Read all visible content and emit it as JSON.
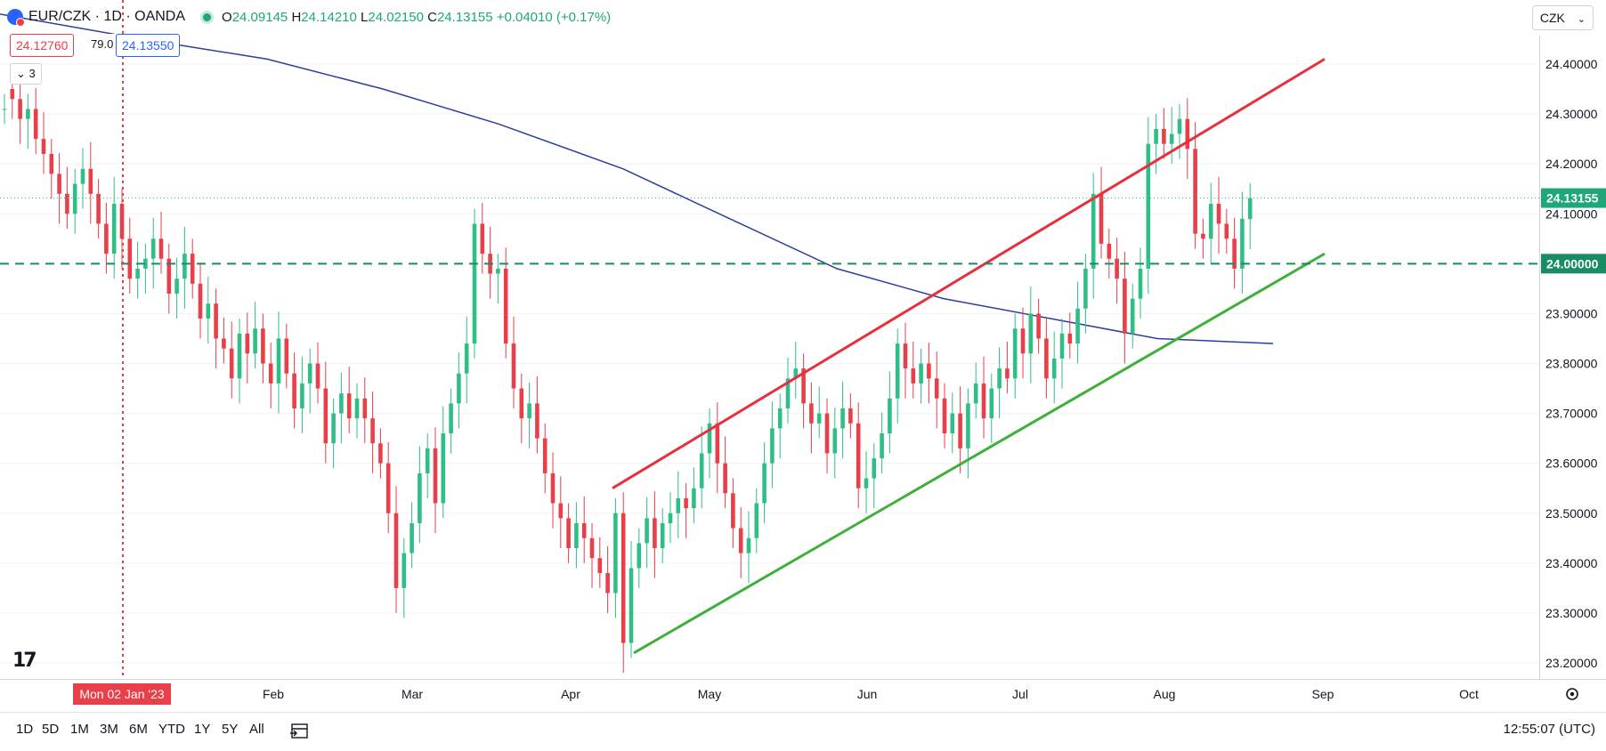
{
  "header": {
    "symbol": "EUR/CZK · 1D · OANDA",
    "o_label": "O",
    "o": "24.09145",
    "h_label": "H",
    "h": "24.14210",
    "l_label": "L",
    "l": "24.02150",
    "c_label": "C",
    "c": "24.13155",
    "change": "+0.04010 (+0.17%)"
  },
  "trade": {
    "sell": "24.12760",
    "spread": "79.0",
    "buy": "24.13550"
  },
  "indicator_count": "3",
  "currency_button": "CZK",
  "time_ranges": [
    "1D",
    "5D",
    "1M",
    "3M",
    "6M",
    "YTD",
    "1Y",
    "5Y",
    "All"
  ],
  "clock": "12:55:07 (UTC)",
  "colors": {
    "up": "#2fbf86",
    "down": "#e83f48",
    "ma": "#2a3f9e",
    "support": "#3fb03a",
    "resistance": "#e8303c",
    "level": "#1a8c64"
  },
  "chart_data": {
    "type": "candlestick",
    "ylim": [
      23.17,
      24.5
    ],
    "yticks": [
      "24.40000",
      "24.30000",
      "24.20000",
      "24.10000",
      "23.90000",
      "23.80000",
      "23.70000",
      "23.60000",
      "23.50000",
      "23.40000",
      "23.30000",
      "23.20000"
    ],
    "xticks": [
      "Feb",
      "Mar",
      "Apr",
      "May",
      "Jun",
      "Jul",
      "Aug",
      "Sep",
      "Oct"
    ],
    "crosshair_label": "Mon 02 Jan '23",
    "last_price_label": "24.13155",
    "level_label": "24.00000",
    "level_value": 24.0,
    "last_price": 24.13155,
    "close": [
      24.31,
      24.33,
      24.29,
      24.31,
      24.25,
      24.22,
      24.18,
      24.14,
      24.1,
      24.16,
      24.19,
      24.14,
      24.08,
      24.02,
      24.12,
      24.05,
      23.97,
      23.99,
      24.01,
      24.05,
      24.01,
      23.94,
      23.97,
      24.02,
      23.96,
      23.89,
      23.92,
      23.85,
      23.83,
      23.77,
      23.86,
      23.82,
      23.87,
      23.8,
      23.76,
      23.85,
      23.78,
      23.71,
      23.76,
      23.8,
      23.75,
      23.64,
      23.7,
      23.74,
      23.69,
      23.73,
      23.69,
      23.64,
      23.6,
      23.5,
      23.35,
      23.42,
      23.48,
      23.58,
      23.63,
      23.52,
      23.66,
      23.72,
      23.78,
      23.84,
      24.08,
      24.02,
      23.98,
      23.99,
      23.84,
      23.75,
      23.69,
      23.72,
      23.65,
      23.58,
      23.52,
      23.49,
      23.43,
      23.48,
      23.45,
      23.41,
      23.38,
      23.34,
      23.5,
      23.24,
      23.39,
      23.44,
      23.49,
      23.43,
      23.48,
      23.5,
      23.53,
      23.51,
      23.55,
      23.62,
      23.68,
      23.6,
      23.54,
      23.47,
      23.42,
      23.45,
      23.52,
      23.6,
      23.67,
      23.71,
      23.77,
      23.79,
      23.72,
      23.68,
      23.7,
      23.62,
      23.67,
      23.71,
      23.68,
      23.55,
      23.57,
      23.61,
      23.66,
      23.73,
      23.84,
      23.79,
      23.76,
      23.8,
      23.77,
      23.73,
      23.66,
      23.7,
      23.63,
      23.72,
      23.76,
      23.69,
      23.75,
      23.79,
      23.77,
      23.87,
      23.82,
      23.9,
      23.85,
      23.77,
      23.81,
      23.86,
      23.84,
      23.91,
      23.99,
      24.14,
      24.04,
      24.01,
      23.97,
      23.86,
      23.93,
      23.99,
      24.24,
      24.27,
      24.24,
      24.26,
      24.29,
      24.23,
      24.06,
      24.05,
      24.12,
      24.08,
      24.05,
      23.99,
      24.09,
      24.13155
    ],
    "open_delta": [
      0.0,
      0.02,
      0.04,
      -0.02,
      0.06,
      0.03,
      0.04,
      0.04,
      0.04,
      -0.06,
      -0.03,
      0.05,
      0.06,
      0.06,
      -0.1,
      0.07,
      0.08,
      -0.02,
      -0.02,
      -0.04,
      0.04,
      0.07,
      -0.03,
      -0.05,
      0.06,
      0.07,
      -0.03,
      0.07,
      0.02,
      0.06,
      -0.09,
      0.04,
      -0.05,
      0.07,
      0.04,
      -0.09,
      0.07,
      0.07,
      -0.05,
      -0.04,
      0.05,
      0.11,
      -0.06,
      -0.04,
      0.05,
      -0.04,
      0.04,
      0.05,
      0.04,
      0.1,
      0.15,
      -0.07,
      -0.06,
      -0.1,
      -0.05,
      0.11,
      -0.14,
      -0.06,
      -0.06,
      -0.06,
      -0.24,
      0.06,
      0.04,
      -0.01,
      0.15,
      0.09,
      0.06,
      -0.03,
      0.07,
      0.07,
      0.06,
      0.03,
      0.06,
      -0.05,
      0.03,
      0.04,
      0.03,
      0.04,
      -0.16,
      0.26,
      -0.15,
      -0.05,
      -0.05,
      0.06,
      -0.05,
      -0.02,
      -0.03,
      0.02,
      -0.04,
      -0.07,
      -0.06,
      0.08,
      0.06,
      0.07,
      0.05,
      -0.03,
      -0.07,
      -0.08,
      -0.07,
      -0.04,
      -0.06,
      -0.02,
      0.07,
      0.04,
      -0.02,
      0.08,
      -0.05,
      -0.04,
      0.03,
      0.13,
      -0.02,
      -0.04,
      -0.05,
      -0.07,
      -0.11,
      0.05,
      0.03,
      -0.04,
      0.03,
      0.04,
      0.07,
      -0.04,
      0.07,
      -0.09,
      -0.04,
      0.07,
      -0.06,
      -0.04,
      0.02,
      -0.1,
      0.05,
      -0.08,
      0.05,
      0.08,
      -0.04,
      -0.05,
      0.02,
      -0.07,
      -0.08,
      -0.15,
      0.1,
      0.03,
      0.04,
      0.11,
      -0.07,
      -0.06,
      -0.25,
      -0.03,
      0.03,
      -0.02,
      -0.03,
      0.06,
      0.17,
      0.01,
      -0.07,
      0.04,
      0.03,
      0.06,
      -0.1,
      -0.04215
    ],
    "ma_200": [
      [
        0,
        24.5
      ],
      [
        160,
        24.45
      ],
      [
        300,
        24.41
      ],
      [
        430,
        24.35
      ],
      [
        560,
        24.28
      ],
      [
        700,
        24.19
      ],
      [
        820,
        24.09
      ],
      [
        940,
        23.99
      ],
      [
        1060,
        23.93
      ],
      [
        1180,
        23.89
      ],
      [
        1300,
        23.85
      ],
      [
        1430,
        23.84
      ]
    ],
    "support_line": [
      [
        712,
        23.22
      ],
      [
        1488,
        24.02
      ]
    ],
    "resistance_line": [
      [
        688,
        23.55
      ],
      [
        1488,
        24.41
      ]
    ],
    "crosshair_x_label_date": "Mon 02 Jan '23"
  }
}
